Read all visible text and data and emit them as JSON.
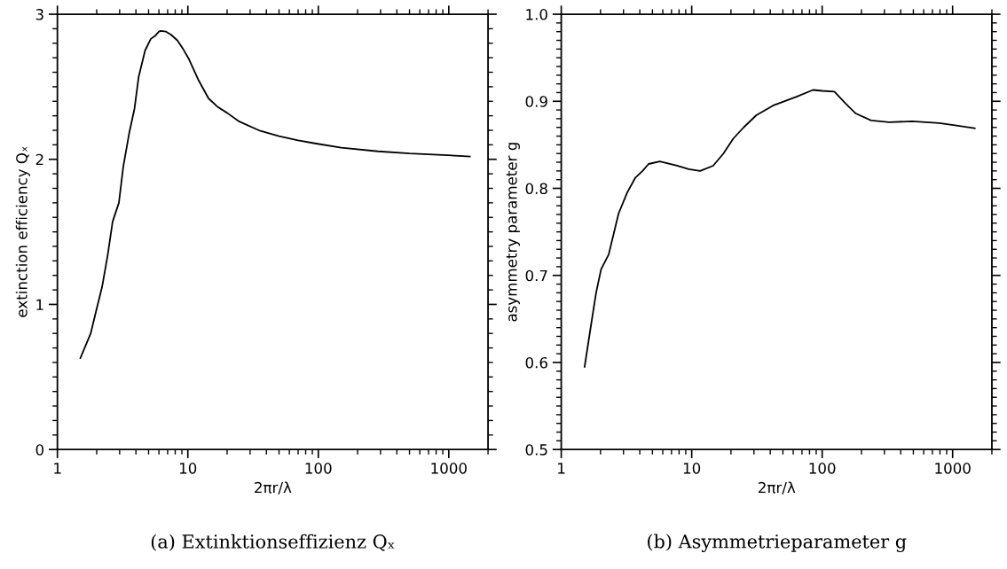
{
  "chart_data": [
    {
      "type": "line",
      "title": "(a) Extinktionseffizienz Qₓ",
      "xlabel": "2πr/λ",
      "ylabel": "extinction efficiency Qₓ",
      "log": "x",
      "grid": false,
      "legend": false,
      "tick_labels": "xy",
      "xlim": [
        1,
        2000
      ],
      "xticks": [
        1,
        10,
        100,
        1000
      ],
      "ylim": [
        0,
        3
      ],
      "yticks": [
        0,
        1,
        2,
        3
      ],
      "series": [
        {
          "color": "#000000",
          "x": [
            1.5,
            1.8,
            1.95,
            2.2,
            2.43,
            2.65,
            2.96,
            3.2,
            3.55,
            3.9,
            4.2,
            4.7,
            5.2,
            5.6,
            6.0,
            6.2,
            6.8,
            7.4,
            8.3,
            9.2,
            10.2,
            12,
            14.4,
            17,
            20,
            24.8,
            35,
            50,
            70,
            94,
            150,
            287,
            500,
            900,
            1450
          ],
          "values": [
            0.63,
            0.8,
            0.93,
            1.12,
            1.34,
            1.57,
            1.7,
            1.95,
            2.18,
            2.35,
            2.57,
            2.75,
            2.83,
            2.85,
            2.88,
            2.885,
            2.88,
            2.86,
            2.82,
            2.76,
            2.69,
            2.55,
            2.42,
            2.36,
            2.32,
            2.26,
            2.2,
            2.16,
            2.13,
            2.11,
            2.08,
            2.055,
            2.04,
            2.03,
            2.02
          ]
        }
      ]
    },
    {
      "type": "line",
      "title": "(b) Asymmetrieparameter g",
      "xlabel": "2πr/λ",
      "ylabel": "asymmetry parameter g",
      "log": "x",
      "grid": false,
      "legend": false,
      "tick_labels": "xy",
      "xlim": [
        1,
        2000
      ],
      "xticks": [
        1,
        10,
        100,
        1000
      ],
      "ylim": [
        0.5,
        1.0
      ],
      "yticks": [
        {
          "value": 0.5,
          "label": "0.5"
        },
        {
          "value": 0.6,
          "label": "0.6"
        },
        {
          "value": 0.7,
          "label": "0.7"
        },
        {
          "value": 0.8,
          "label": "0.8"
        },
        {
          "value": 0.9,
          "label": "0.9"
        },
        {
          "value": 1.0,
          "label": "1.0"
        }
      ],
      "series": [
        {
          "color": "#000000",
          "x": [
            1.51,
            1.7,
            1.85,
            2.02,
            2.31,
            2.75,
            3.2,
            3.69,
            4.2,
            4.67,
            5.7,
            7.7,
            9.5,
            11.6,
            14.6,
            17.5,
            20.8,
            25,
            31.3,
            41.9,
            63,
            85,
            100,
            124,
            152,
            181,
            237,
            326,
            490,
            790,
            1100,
            1480
          ],
          "values": [
            0.595,
            0.645,
            0.68,
            0.707,
            0.724,
            0.771,
            0.795,
            0.812,
            0.82,
            0.828,
            0.831,
            0.826,
            0.822,
            0.82,
            0.826,
            0.84,
            0.857,
            0.87,
            0.884,
            0.895,
            0.905,
            0.913,
            0.912,
            0.911,
            0.897,
            0.886,
            0.878,
            0.876,
            0.877,
            0.875,
            0.872,
            0.869
          ]
        }
      ]
    }
  ]
}
